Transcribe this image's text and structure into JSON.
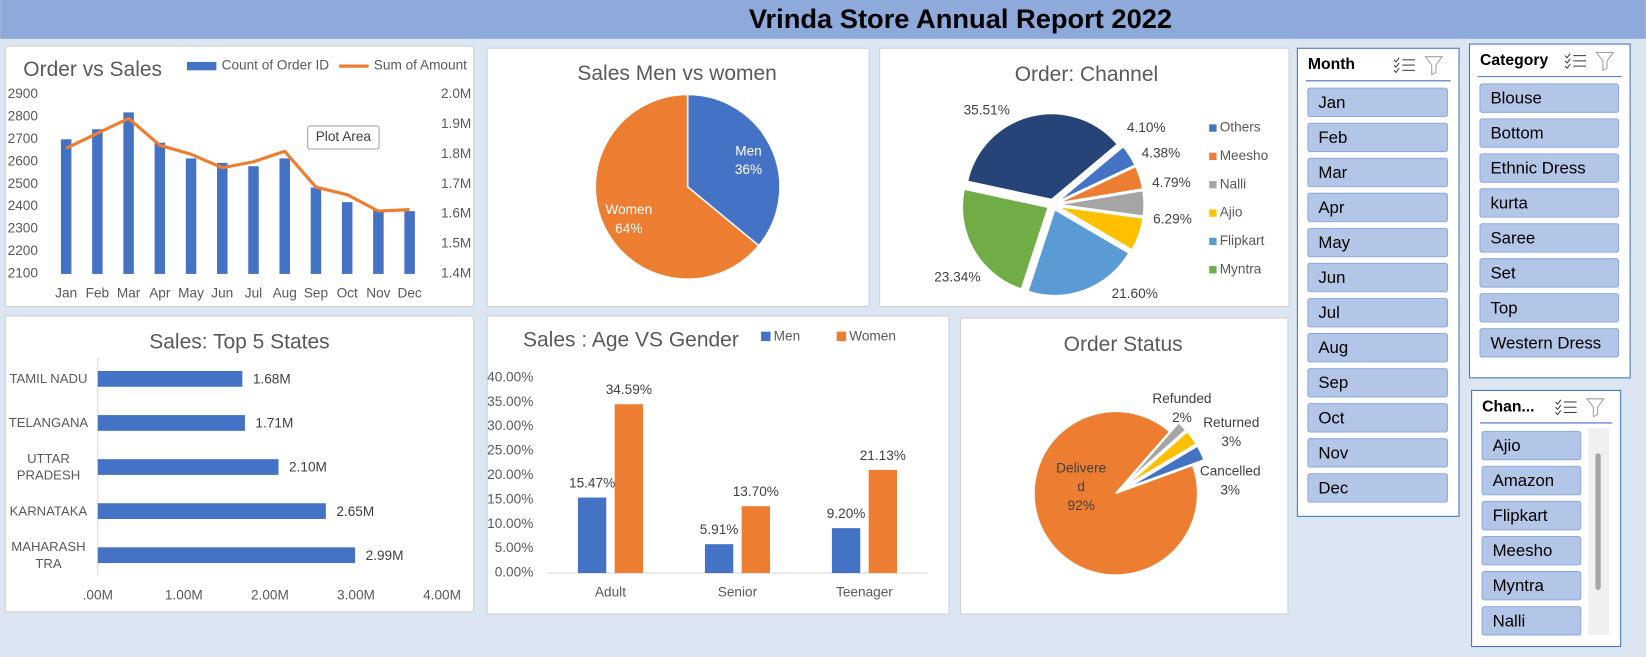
{
  "title": "Vrinda Store Annual Report 2022",
  "tooltip": "Plot Area",
  "chart_data": [
    {
      "type": "combo",
      "title": "Order vs  Sales",
      "categories": [
        "Jan",
        "Feb",
        "Mar",
        "Apr",
        "May",
        "Jun",
        "Jul",
        "Aug",
        "Sep",
        "Oct",
        "Nov",
        "Dec"
      ],
      "series": [
        {
          "name": "Count of Order ID",
          "type": "bar",
          "color": "#4472c4",
          "values": [
            2700,
            2745,
            2820,
            2685,
            2615,
            2595,
            2580,
            2615,
            2485,
            2420,
            2385,
            2380
          ]
        },
        {
          "name": "Sum of Amount",
          "type": "line",
          "color": "#ed7d31",
          "axis": "y2",
          "values": [
            1820000,
            1870000,
            1920000,
            1830000,
            1800000,
            1755000,
            1775000,
            1810000,
            1690000,
            1665000,
            1610000,
            1615000
          ]
        }
      ],
      "ylim": [
        2100,
        2900
      ],
      "yticks": [
        2100,
        2200,
        2300,
        2400,
        2500,
        2600,
        2700,
        2800,
        2900
      ],
      "y2lim": [
        1400000,
        2000000
      ],
      "y2ticks": [
        {
          "value": 1400000,
          "label": "1.4M"
        },
        {
          "value": 1500000,
          "label": "1.5M"
        },
        {
          "value": 1600000,
          "label": "1.6M"
        },
        {
          "value": 1700000,
          "label": "1.7M"
        },
        {
          "value": 1800000,
          "label": "1.8M"
        },
        {
          "value": 1900000,
          "label": "1.9M"
        },
        {
          "value": 2000000,
          "label": "2.0M"
        }
      ],
      "legend": "top"
    },
    {
      "type": "pie",
      "title": "Sales Men vs women",
      "categories": [
        "Men",
        "Women"
      ],
      "values": [
        36,
        64
      ],
      "value_labels": [
        "36%",
        "64%"
      ],
      "colors": [
        "#4472c4",
        "#ed7d31"
      ]
    },
    {
      "type": "pie",
      "title": "Order: Channel",
      "categories": [
        "Others",
        "Meesho",
        "Nalli",
        "Ajio",
        "Flipkart",
        "Myntra",
        null
      ],
      "values": [
        4.1,
        4.38,
        4.79,
        6.29,
        21.6,
        23.34,
        35.51
      ],
      "value_labels": [
        "4.10%",
        "4.38%",
        "4.79%",
        "6.29%",
        "21.60%",
        "23.34%",
        "35.51%"
      ],
      "colors": [
        "#4472c4",
        "#ed7d31",
        "#a5a5a5",
        "#ffc000",
        "#5b9bd5",
        "#70ad47",
        "#264478"
      ],
      "legend": "right"
    },
    {
      "type": "barh",
      "title": "Sales: Top 5 States",
      "categories": [
        "TAMIL NADU",
        "TELANGANA",
        "UTTAR PRADESH",
        "KARNATAKA",
        "MAHARASHTRA"
      ],
      "values": [
        1680000,
        1710000,
        2100000,
        2650000,
        2990000
      ],
      "value_labels": [
        "1.68M",
        "1.71M",
        "2.10M",
        "2.65M",
        "2.99M"
      ],
      "color": "#4472c4",
      "xlim": [
        0,
        4000000
      ],
      "xticks": [
        {
          "value": 0,
          "label": ".00M"
        },
        {
          "value": 1000000,
          "label": "1.00M"
        },
        {
          "value": 2000000,
          "label": "2.00M"
        },
        {
          "value": 3000000,
          "label": "3.00M"
        },
        {
          "value": 4000000,
          "label": "4.00M"
        }
      ]
    },
    {
      "type": "bar",
      "title": "Sales : Age VS Gender",
      "categories": [
        "Adult",
        "Senior",
        "Teenager"
      ],
      "series": [
        {
          "name": "Men",
          "color": "#4472c4",
          "values": [
            15.47,
            5.91,
            9.2
          ],
          "value_labels": [
            "15.47%",
            "5.91%",
            "9.20%"
          ]
        },
        {
          "name": "Women",
          "color": "#ed7d31",
          "values": [
            34.59,
            13.7,
            21.13
          ],
          "value_labels": [
            "34.59%",
            "13.70%",
            "21.13%"
          ]
        }
      ],
      "ylim": [
        0,
        40
      ],
      "yticks": [
        {
          "value": 0,
          "label": "0.00%"
        },
        {
          "value": 5,
          "label": "5.00%"
        },
        {
          "value": 10,
          "label": "10.00%"
        },
        {
          "value": 15,
          "label": "15.00%"
        },
        {
          "value": 20,
          "label": "20.00%"
        },
        {
          "value": 25,
          "label": "25.00%"
        },
        {
          "value": 30,
          "label": "30.00%"
        },
        {
          "value": 35,
          "label": "35.00%"
        },
        {
          "value": 40,
          "label": "40.00%"
        }
      ],
      "legend": "top"
    },
    {
      "type": "pie",
      "title": "Order Status",
      "categories": [
        "Delivered",
        "Refunded",
        "Returned",
        "Cancelled"
      ],
      "values": [
        92,
        2,
        3,
        3
      ],
      "value_labels": [
        "92%",
        "2%",
        "3%",
        "3%"
      ],
      "colors": [
        "#ed7d31",
        "#a5a5a5",
        "#ffc000",
        "#4472c4"
      ]
    }
  ],
  "slicers": [
    {
      "title": "Month",
      "items": [
        "Jan",
        "Feb",
        "Mar",
        "Apr",
        "May",
        "Jun",
        "Jul",
        "Aug",
        "Sep",
        "Oct",
        "Nov",
        "Dec"
      ]
    },
    {
      "title": "Category",
      "items": [
        "Blouse",
        "Bottom",
        "Ethnic Dress",
        "kurta",
        "Saree",
        "Set",
        "Top",
        "Western Dress"
      ]
    },
    {
      "title": "Chan...",
      "items": [
        "Ajio",
        "Amazon",
        "Flipkart",
        "Meesho",
        "Myntra",
        "Nalli"
      ]
    }
  ]
}
